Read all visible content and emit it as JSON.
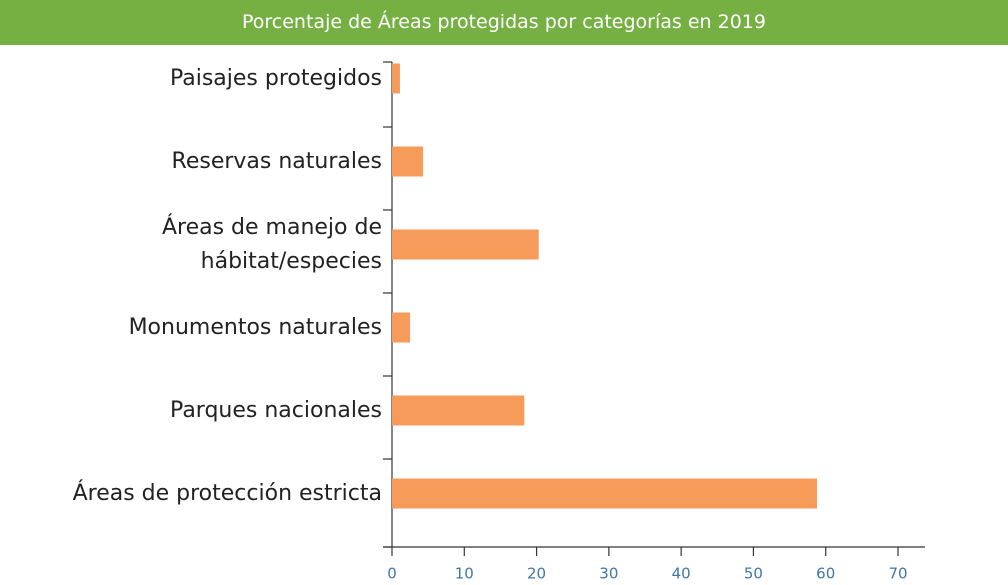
{
  "chart_data": {
    "type": "barh",
    "title": "Porcentaje de Áreas protegidas por categorías en 2019",
    "categories": [
      "Paisajes protegidos",
      "Reservas naturales",
      "Áreas de manejo de\nhábitat/especies",
      "Monumentos naturales",
      "Parques nacionales",
      "Áreas de protección estricta"
    ],
    "values": [
      1.1,
      4.3,
      20.3,
      2.5,
      18.3,
      58.8
    ],
    "color": "#f79b5b",
    "xlim": [
      0,
      70
    ],
    "xticks": [
      0,
      10,
      20,
      30,
      40,
      50,
      60,
      70
    ]
  }
}
